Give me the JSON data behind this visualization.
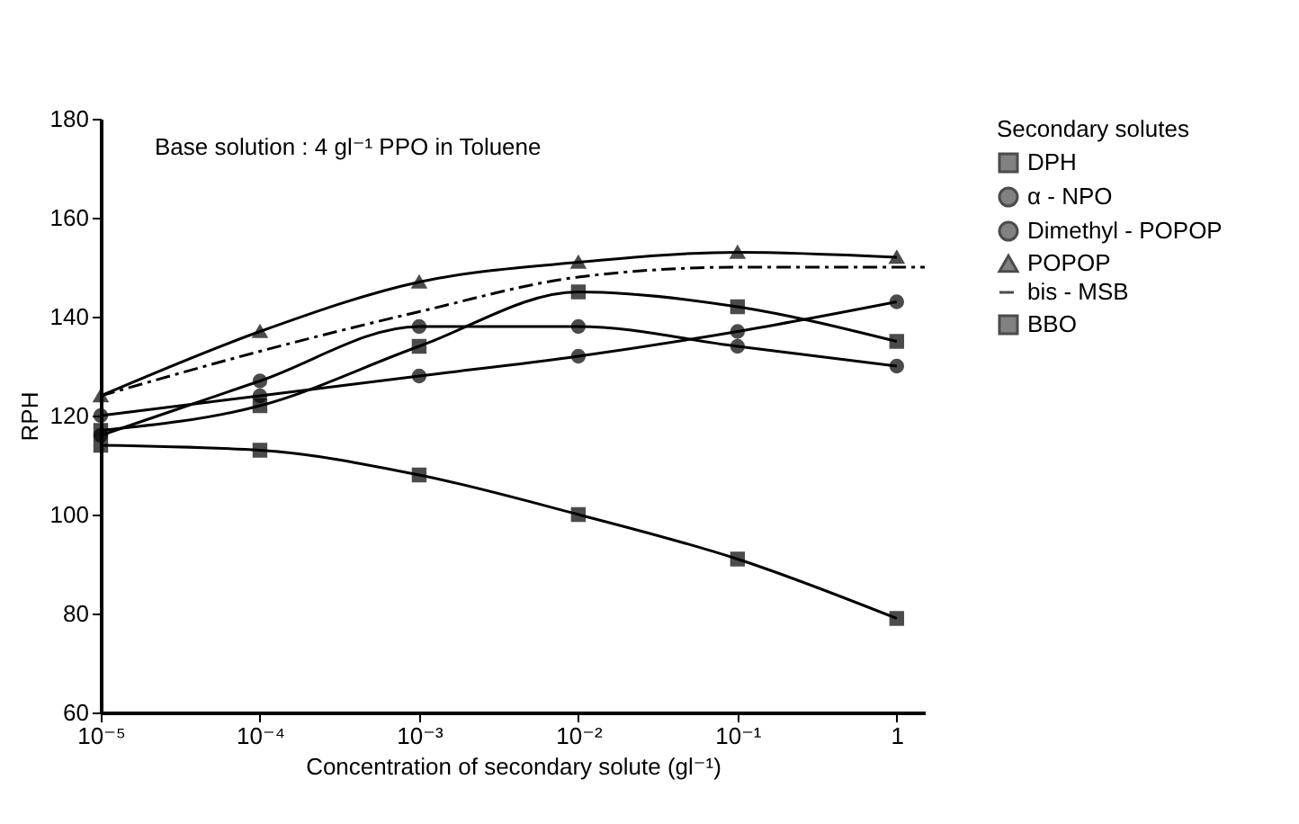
{
  "chart_data": {
    "type": "line",
    "xlabel": "Concentration of secondary solute (gl⁻¹)",
    "ylabel": "RPH",
    "legend_title": "Secondary solutes",
    "annotations": [
      "Base solution : 4 gl⁻¹ PPO in Toluene"
    ],
    "x": [
      1e-05,
      0.0001,
      0.001,
      0.01,
      0.1,
      1
    ],
    "series": [
      {
        "name": "DPH",
        "color": "#000000",
        "marker": "square",
        "values": [
          114,
          113,
          108,
          100,
          91,
          79
        ]
      },
      {
        "name": "α - NPO",
        "color": "#000000",
        "marker": "circle",
        "values": [
          120,
          124,
          128,
          132,
          137,
          143
        ]
      },
      {
        "name": "Dimethyl - POPOP",
        "color": "#000000",
        "marker": "circle",
        "values": [
          116,
          127,
          138,
          138,
          134,
          130
        ]
      },
      {
        "name": "POPOP",
        "color": "#000000",
        "marker": "triangle",
        "values": [
          124,
          137,
          147,
          151,
          153,
          152
        ]
      },
      {
        "name": "bis - MSB",
        "color": "#000000",
        "marker": "none",
        "line_style": "dashdot",
        "x": [
          1e-05,
          0.0001,
          0.001,
          0.01,
          0.1,
          1.5
        ],
        "values": [
          124,
          133,
          141,
          148,
          150,
          150
        ]
      },
      {
        "name": "BBO",
        "color": "#000000",
        "marker": "square",
        "values": [
          117,
          122,
          134,
          145,
          142,
          135
        ]
      }
    ],
    "log": "x",
    "xlim": [
      1e-05,
      1.5
    ],
    "xticks": [
      {
        "value": 1e-05,
        "label": "10⁻⁵"
      },
      {
        "value": 0.0001,
        "label": "10⁻⁴"
      },
      {
        "value": 0.001,
        "label": "10⁻³"
      },
      {
        "value": 0.01,
        "label": "10⁻²"
      },
      {
        "value": 0.1,
        "label": "10⁻¹"
      },
      1
    ],
    "ylim": [
      60,
      180
    ],
    "yticks": [
      60,
      80,
      100,
      120,
      140,
      160,
      180
    ],
    "grid": false,
    "legend": "top right"
  }
}
